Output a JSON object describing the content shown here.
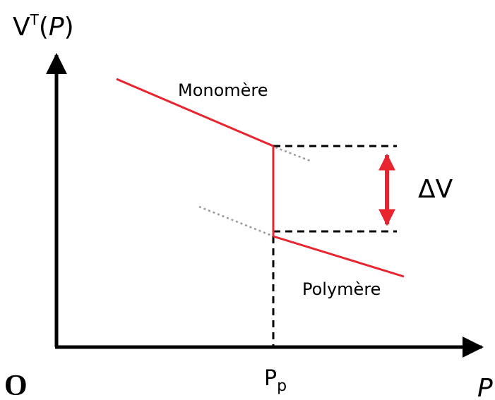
{
  "y_axis_label": {
    "base": "V",
    "superscript": "T",
    "open": "(",
    "variable": "P",
    "close": ")"
  },
  "x_axis_label": "P",
  "origin": "O",
  "curves": [
    {
      "label": "Monomère"
    },
    {
      "label": "Polymère"
    }
  ],
  "transition": {
    "label": "P",
    "subscript": "p"
  },
  "delta": {
    "label": "ΔV"
  }
}
